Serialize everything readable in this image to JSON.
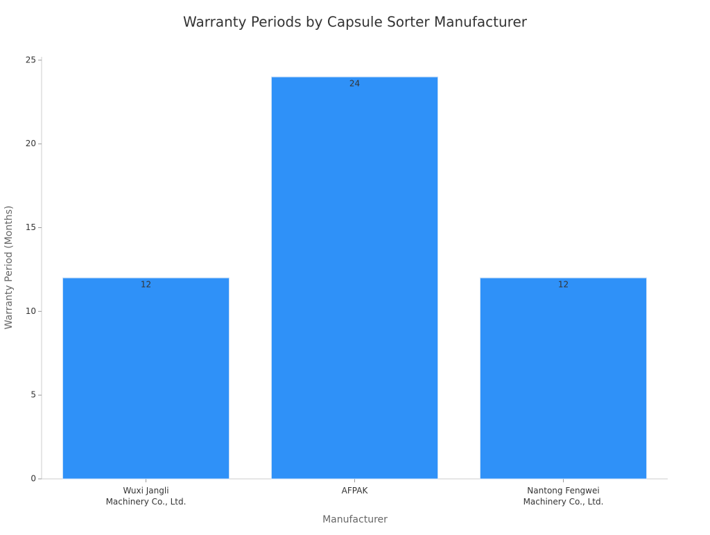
{
  "chart_data": {
    "type": "bar",
    "title": "Warranty Periods by Capsule Sorter Manufacturer",
    "x_label": "Manufacturer",
    "y_label": "Warranty Period (Months)",
    "categories": [
      [
        "Wuxi Jangli",
        "Machinery Co., Ltd."
      ],
      [
        "AFPAK"
      ],
      [
        "Nantong Fengwei",
        "Machinery Co., Ltd."
      ]
    ],
    "values": [
      12,
      24,
      12
    ],
    "color": "#2f91f8",
    "ylim": [
      0,
      25.2
    ],
    "yticks": [
      0,
      5,
      10,
      15,
      20,
      25
    ],
    "grid": false
  }
}
